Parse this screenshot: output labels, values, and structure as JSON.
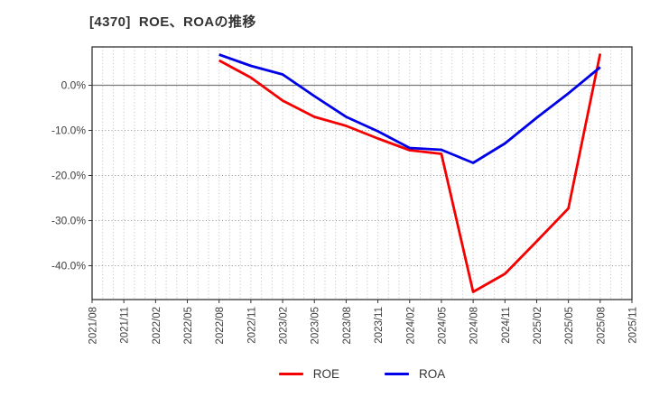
{
  "header": {
    "title": "[4370]  ROE、ROAの推移"
  },
  "chart_data": {
    "type": "line",
    "title": "[4370]  ROE、ROAの推移",
    "x_axis": {
      "tick_labels": [
        "2021/08",
        "2021/11",
        "2022/02",
        "2022/05",
        "2022/08",
        "2022/11",
        "2023/02",
        "2023/05",
        "2023/08",
        "2023/11",
        "2024/02",
        "2024/05",
        "2024/08",
        "2024/11",
        "2025/02",
        "2025/05",
        "2025/08",
        "2025/11"
      ],
      "months_total": 51,
      "tick_every_months": 3,
      "minor_grid": "monthly"
    },
    "y_axis": {
      "tick_labels": [
        "0.0%",
        "-10.0%",
        "-20.0%",
        "-30.0%",
        "-40.0%"
      ],
      "tick_values": [
        0,
        -10,
        -20,
        -30,
        -40
      ],
      "max": 8.5,
      "min": -47.5,
      "unit": "%"
    },
    "categories": [
      "2022/08",
      "2022/11",
      "2023/02",
      "2023/05",
      "2023/08",
      "2023/11",
      "2024/02",
      "2024/05",
      "2024/08",
      "2024/11",
      "2025/02",
      "2025/05",
      "2025/08"
    ],
    "first_point_month_index": 12,
    "point_step_months": 3,
    "series": [
      {
        "name": "ROE",
        "color": "#f50000",
        "values": [
          5.5,
          1.7,
          -3.4,
          -7.0,
          -9.0,
          -11.8,
          -14.4,
          -15.2,
          -45.8,
          -41.8,
          -34.6,
          -27.3,
          7.0
        ]
      },
      {
        "name": "ROA",
        "color": "#0000e8",
        "values": [
          6.8,
          4.3,
          2.4,
          -2.4,
          -7.0,
          -10.2,
          -13.9,
          -14.3,
          -17.2,
          -12.9,
          -7.2,
          -1.8,
          4.0
        ]
      }
    ],
    "grid": {
      "vertical": "dotted",
      "horizontal": "dotted",
      "zero_line": "solid"
    },
    "legend_position": "lower-center"
  },
  "legend": {
    "items": [
      {
        "label": "ROE",
        "color": "#f50000"
      },
      {
        "label": "ROA",
        "color": "#0000e8"
      }
    ]
  },
  "colors": {
    "border": "#333333",
    "grid_vertical": "#bdbdbd",
    "grid_horizontal": "#8f8f8f",
    "zero_line": "#7a7a7a",
    "tick_text": "#404040",
    "title_text": "#333333",
    "background": "#ffffff"
  }
}
